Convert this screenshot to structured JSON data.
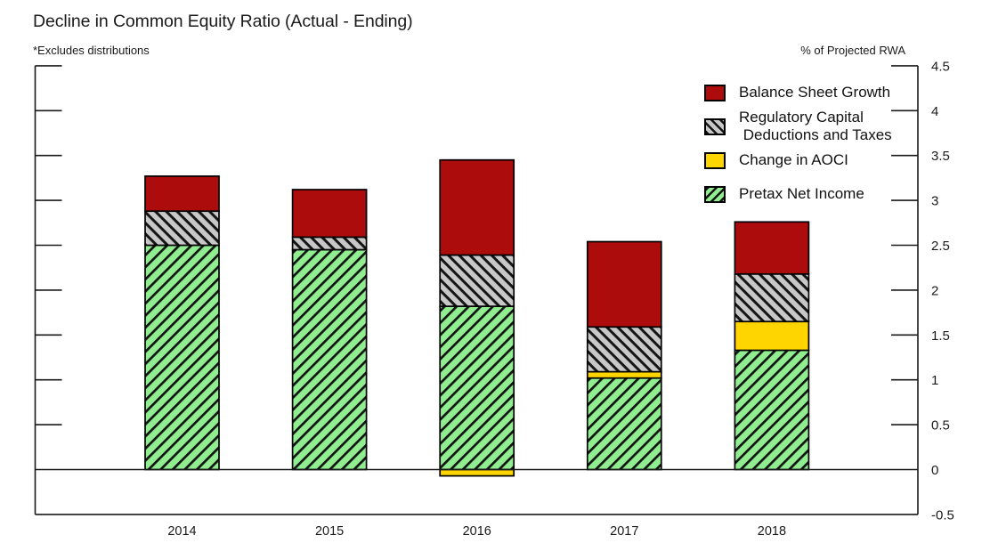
{
  "header": {
    "title": "Decline in Common Equity Ratio (Actual - Ending)",
    "note": "*Excludes distributions",
    "unit_label": "% of Projected RWA"
  },
  "chart_data": {
    "type": "bar",
    "stacked": true,
    "title": "Decline in Common Equity Ratio (Actual - Ending)",
    "note": "*Excludes distributions",
    "right_axis_label": "% of Projected RWA",
    "categories": [
      "2014",
      "2015",
      "2016",
      "2017",
      "2018"
    ],
    "series": [
      {
        "name": "Pretax Net Income",
        "color": "#90EE90",
        "hatch": "forward",
        "values": [
          2.5,
          2.45,
          1.82,
          1.02,
          1.33
        ]
      },
      {
        "name": "Change in AOCI",
        "color": "#FFD500",
        "hatch": "none",
        "values": [
          0,
          0,
          -0.07,
          0.07,
          0.32
        ]
      },
      {
        "name": "Regulatory Capital Deductions and Taxes",
        "color": "#C8C8C8",
        "hatch": "back",
        "values": [
          0.38,
          0.14,
          0.57,
          0.5,
          0.53
        ]
      },
      {
        "name": "Balance Sheet Growth",
        "color": "#AD0C0C",
        "hatch": "none",
        "values": [
          0.39,
          0.53,
          1.06,
          0.95,
          0.58
        ]
      }
    ],
    "bar_totals": [
      3.27,
      3.12,
      3.45,
      2.54,
      2.76
    ],
    "ylim": [
      -0.5,
      4.5
    ],
    "yticks": [
      4.5,
      4,
      3.5,
      3,
      2.5,
      2,
      1.5,
      1,
      0.5,
      0,
      -0.5
    ],
    "ytick_labels": [
      "4.5",
      "4",
      "3.5",
      "3",
      "2.5",
      "2",
      "1.5",
      "1",
      "0.5",
      "0",
      "-0.5"
    ],
    "grid": false,
    "legend_position": "top-right",
    "hatch_line_color": "#141414",
    "axis_color": "#1a1a1a"
  },
  "legend": {
    "items": [
      {
        "lines": [
          "Balance Sheet Growth"
        ],
        "color": "#AD0C0C",
        "hatch": "none"
      },
      {
        "lines": [
          "Regulatory Capital",
          " Deductions and Taxes"
        ],
        "color": "#C8C8C8",
        "hatch": "back"
      },
      {
        "lines": [
          "Change in AOCI"
        ],
        "color": "#FFD500",
        "hatch": "none"
      },
      {
        "lines": [
          "Pretax Net Income"
        ],
        "color": "#90EE90",
        "hatch": "forward"
      }
    ]
  }
}
